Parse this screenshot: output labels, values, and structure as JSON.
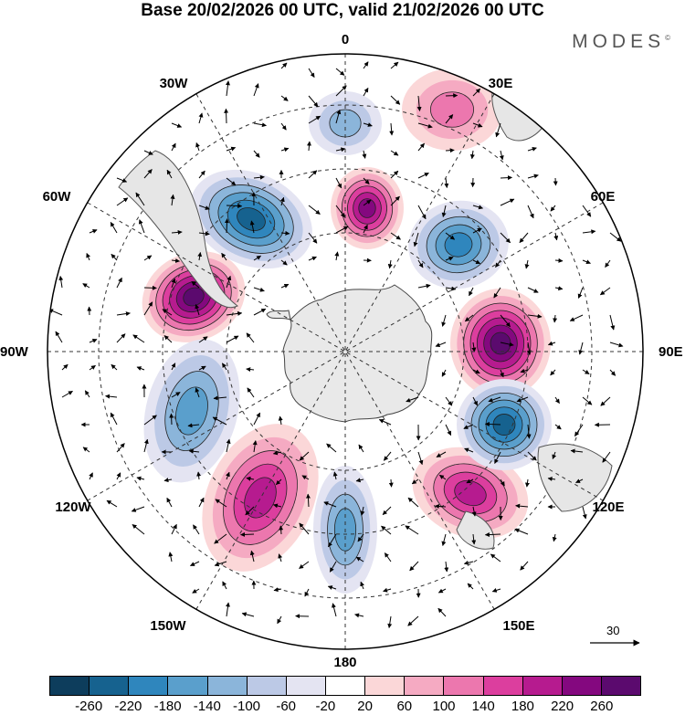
{
  "title": "Base 20/02/2026 00 UTC, valid 21/02/2026 00 UTC",
  "brand": {
    "name": "MODES",
    "mark": "©"
  },
  "longitude_labels": [
    "0",
    "30E",
    "60E",
    "90E",
    "120E",
    "150E",
    "180",
    "150W",
    "120W",
    "90W",
    "60W",
    "30W"
  ],
  "reference_vector": {
    "value": "30"
  },
  "colorbar": {
    "ticks": [
      "-260",
      "-220",
      "-180",
      "-140",
      "-100",
      "-60",
      "-20",
      "20",
      "60",
      "100",
      "140",
      "180",
      "220",
      "260"
    ],
    "colors": [
      "#0d3d5c",
      "#16628f",
      "#2f86bd",
      "#5a9fcc",
      "#8bb5da",
      "#bcc9e6",
      "#e4e4f2",
      "#ffffff",
      "#fbd7d8",
      "#f5aac2",
      "#ec77ae",
      "#dc3e9e",
      "#b61b8f",
      "#84087f",
      "#5b0a6e"
    ]
  },
  "anomaly_features": [
    {
      "sign": "positive",
      "value": 260
    },
    {
      "sign": "positive",
      "value": 260
    },
    {
      "sign": "positive",
      "value": 220
    },
    {
      "sign": "positive",
      "value": 180
    },
    {
      "sign": "positive",
      "value": 180
    },
    {
      "sign": "positive",
      "value": 100
    },
    {
      "sign": "negative",
      "value": -220
    },
    {
      "sign": "negative",
      "value": -220
    },
    {
      "sign": "negative",
      "value": -180
    },
    {
      "sign": "negative",
      "value": -140
    },
    {
      "sign": "negative",
      "value": -140
    },
    {
      "sign": "negative",
      "value": -100
    }
  ]
}
